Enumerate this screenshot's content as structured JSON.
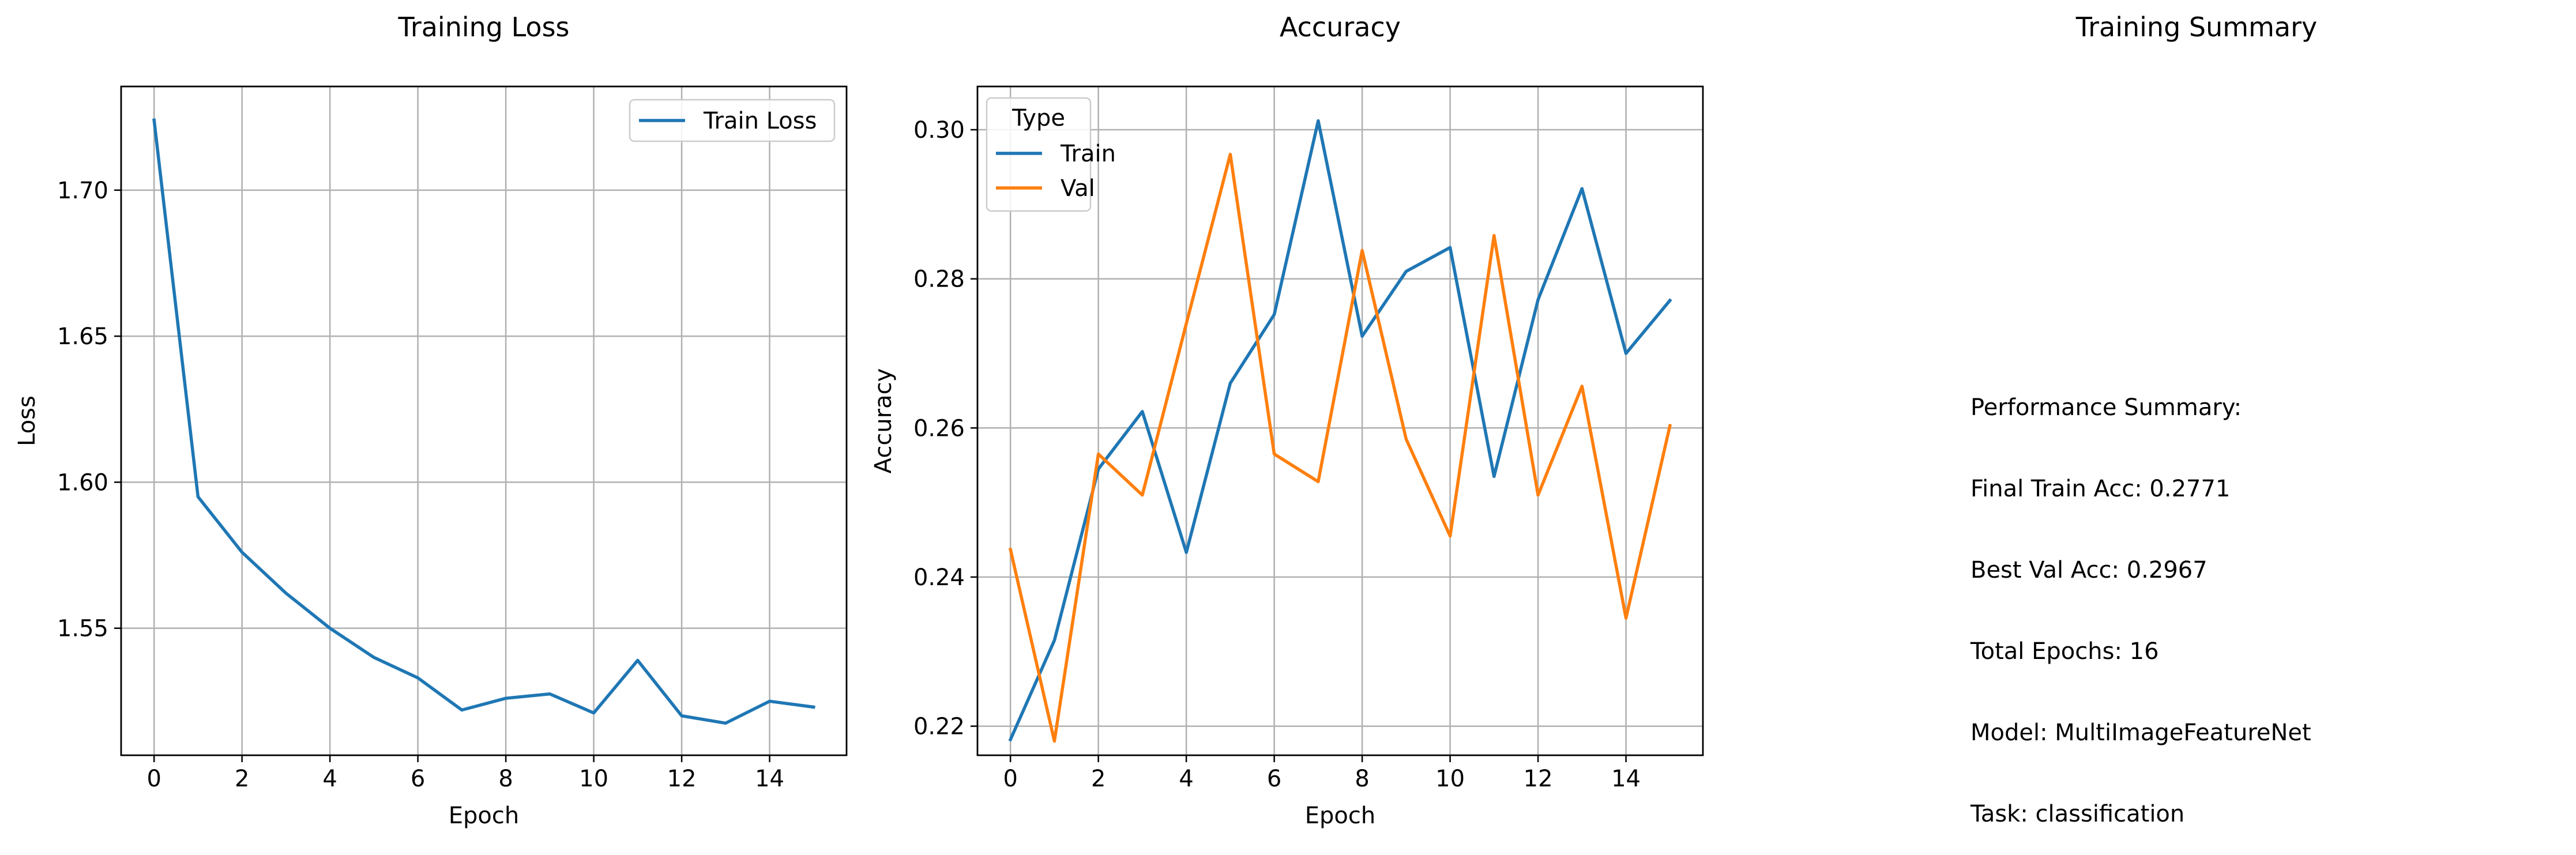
{
  "chart_data": [
    {
      "type": "line",
      "title": "Training Loss",
      "xlabel": "Epoch",
      "ylabel": "Loss",
      "x": [
        0,
        1,
        2,
        3,
        4,
        5,
        6,
        7,
        8,
        9,
        10,
        11,
        12,
        13,
        14,
        15
      ],
      "xticks": [
        0,
        2,
        4,
        6,
        8,
        10,
        12,
        14
      ],
      "yticks": [
        1.55,
        1.6,
        1.65,
        1.7
      ],
      "xlim": [
        -0.75,
        15.75
      ],
      "ylim": [
        1.5065,
        1.7355
      ],
      "grid": true,
      "legend": {
        "position": "top-right",
        "title": ""
      },
      "series": [
        {
          "name": "Train Loss",
          "color": "#1f77b4",
          "values": [
            1.724,
            1.595,
            1.576,
            1.562,
            1.55,
            1.54,
            1.533,
            1.522,
            1.526,
            1.5275,
            1.521,
            1.539,
            1.52,
            1.5175,
            1.525,
            1.523
          ]
        }
      ]
    },
    {
      "type": "line",
      "title": "Accuracy",
      "xlabel": "Epoch",
      "ylabel": "Accuracy",
      "x": [
        0,
        1,
        2,
        3,
        4,
        5,
        6,
        7,
        8,
        9,
        10,
        11,
        12,
        13,
        14,
        15
      ],
      "xticks": [
        0,
        2,
        4,
        6,
        8,
        10,
        12,
        14
      ],
      "yticks": [
        0.22,
        0.24,
        0.26,
        0.28,
        0.3
      ],
      "xlim": [
        -0.75,
        15.75
      ],
      "ylim": [
        0.2161,
        0.3058
      ],
      "grid": true,
      "legend": {
        "position": "top-left",
        "title": "Type"
      },
      "series": [
        {
          "name": "Train",
          "color": "#1f77b4",
          "values": [
            0.2182,
            0.2315,
            0.2545,
            0.2622,
            0.2433,
            0.266,
            0.2752,
            0.3012,
            0.2723,
            0.281,
            0.2842,
            0.2535,
            0.2772,
            0.2921,
            0.27,
            0.2771
          ]
        },
        {
          "name": "Val",
          "color": "#ff7f0e",
          "values": [
            0.2437,
            0.218,
            0.2565,
            0.251,
            0.274,
            0.2967,
            0.2565,
            0.2528,
            0.2838,
            0.2585,
            0.2455,
            0.2858,
            0.251,
            0.2656,
            0.2345,
            0.2603
          ]
        }
      ]
    }
  ],
  "summary": {
    "title": "Training Summary",
    "lines": [
      "Performance Summary:",
      "Final Train Acc: 0.2771",
      "Best Val Acc: 0.2967",
      "Total Epochs: 16",
      "Model: MultiImageFeatureNet",
      "Task: classification"
    ]
  }
}
